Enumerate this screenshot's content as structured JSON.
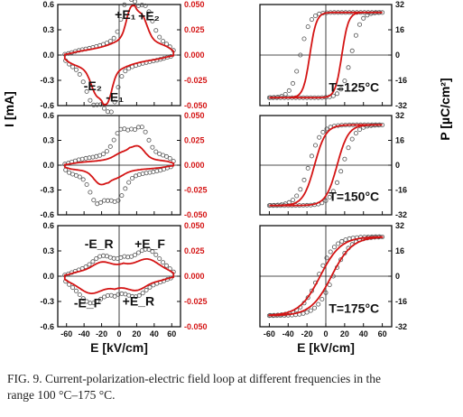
{
  "figure": {
    "caption_line1": "FIG. 9. Current-polarization-electric field loop at different frequencies in the",
    "caption_line2": "range 100 °C–175 °C.",
    "current_axis_label": "I [mA]",
    "polarization_axis_label": "P [µC/cm²]",
    "field_axis_label": "E [kV/cm]",
    "colors": {
      "measured": "#555555",
      "fitted": "#d41414",
      "right_axis": "#d41414",
      "frame": "#111111"
    }
  },
  "chart_data": [
    {
      "type": "line",
      "title": "",
      "xlabel": "",
      "ylabel": "I [mA]",
      "y2label": "",
      "xlim": [
        -70,
        70
      ],
      "ylim": [
        -0.6,
        0.6
      ],
      "y2lim": [
        -0.05,
        0.05
      ],
      "xticks": [
        -60,
        -40,
        -20,
        0,
        20,
        40,
        60
      ],
      "yticks": [
        "0.6",
        "0.3",
        "0.0",
        "-0.3",
        "-0.6"
      ],
      "y2ticks": [
        "0.050",
        "0.025",
        "0.000",
        "-0.025",
        "-0.050"
      ],
      "annotations": [
        {
          "text": "+E₁",
          "x": 7,
          "y": 0.43
        },
        {
          "text": "+E₂",
          "x": 34,
          "y": 0.41
        },
        {
          "text": "-E₂",
          "x": -30,
          "y": -0.42
        },
        {
          "text": "-E₁",
          "x": -5,
          "y": -0.55
        }
      ],
      "series": [
        {
          "kind": "measured",
          "axis": "left",
          "peak": 0.42,
          "peaks": [
            {
              "x": 9,
              "h": 0.36,
              "w": 6
            },
            {
              "x": 30,
              "h": 0.3,
              "w": 8
            }
          ],
          "plateau_x": 18,
          "tail": 0.03,
          "step": 4
        },
        {
          "kind": "fitted",
          "axis": "right",
          "peak": 0.028,
          "peaks": [
            {
              "x": 13,
              "h": 0.022,
              "w": 5
            },
            {
              "x": 26,
              "h": 0.018,
              "w": 6
            }
          ],
          "plateau_x": 18,
          "tail": 0.002
        }
      ]
    },
    {
      "type": "line",
      "title": "",
      "xlabel": "",
      "ylabel": "",
      "y2label": "",
      "xlim": [
        -70,
        70
      ],
      "ylim": [
        -0.6,
        0.6
      ],
      "y2lim": [
        -0.05,
        0.05
      ],
      "xticks": [
        -60,
        -40,
        -20,
        0,
        20,
        40,
        60
      ],
      "yticks": [
        "0.6",
        "0.3",
        "0.0",
        "-0.3",
        "-0.6"
      ],
      "y2ticks": [
        "0.050",
        "0.025",
        "0.000",
        "-0.025",
        "-0.050"
      ],
      "annotations": [],
      "series": [
        {
          "kind": "measured",
          "axis": "left",
          "peak": 0.31,
          "peaks": [
            {
              "x": 2,
              "h": 0.22,
              "w": 8
            },
            {
              "x": 26,
              "h": 0.24,
              "w": 7
            }
          ],
          "plateau_x": 14,
          "tail": 0.05,
          "step": 4
        },
        {
          "kind": "fitted",
          "axis": "right",
          "peak": 0.012,
          "peaks": [
            {
              "x": 3,
              "h": 0.004,
              "w": 8
            },
            {
              "x": 22,
              "h": 0.01,
              "w": 7
            }
          ],
          "plateau_x": 12,
          "tail": 0.002
        }
      ]
    },
    {
      "type": "line",
      "title": "",
      "xlabel": "E [kV/cm]",
      "ylabel": "",
      "y2label": "",
      "xlim": [
        -70,
        70
      ],
      "ylim": [
        -0.6,
        0.6
      ],
      "y2lim": [
        -0.05,
        0.05
      ],
      "xticks": [
        -60,
        -40,
        -20,
        0,
        20,
        40,
        60
      ],
      "yticks": [
        "0.6",
        "0.3",
        "0.0",
        "-0.3",
        "-0.6"
      ],
      "y2ticks": [
        "0.050",
        "0.025",
        "0.000",
        "-0.025",
        "-0.050"
      ],
      "annotations": [
        {
          "text": "-E_R",
          "x": -23,
          "y": 0.33
        },
        {
          "text": "+E_F",
          "x": 35,
          "y": 0.33
        },
        {
          "text": "-E_F",
          "x": -36,
          "y": -0.37
        },
        {
          "text": "+E_R",
          "x": 22,
          "y": -0.35
        }
      ],
      "series": [
        {
          "kind": "measured",
          "axis": "left",
          "peak": 0.22,
          "peaks": [
            {
              "x": -20,
              "h": 0.12,
              "w": 10
            },
            {
              "x": 33,
              "h": 0.2,
              "w": 12
            }
          ],
          "plateau_x": 5,
          "tail": 0.06,
          "step": 4
        },
        {
          "kind": "fitted",
          "axis": "right",
          "peak": 0.012,
          "peaks": [
            {
              "x": -20,
              "h": 0.007,
              "w": 10
            },
            {
              "x": 33,
              "h": 0.01,
              "w": 12
            }
          ],
          "plateau_x": 5,
          "tail": 0.004
        }
      ]
    },
    {
      "type": "line",
      "title": "",
      "xlabel": "",
      "ylabel": "",
      "y2label": "",
      "xlim": [
        -70,
        70
      ],
      "ylim": [
        -32,
        32
      ],
      "xticks": [
        -60,
        -40,
        -20,
        0,
        20,
        40,
        60
      ],
      "y2ticks": [
        "32",
        "16",
        "0",
        "-16",
        "-32"
      ],
      "annotations": [
        {
          "text": "T=125°C",
          "x": 30,
          "y": -23
        }
      ],
      "series": [
        {
          "kind": "measured",
          "Ps": 27,
          "Ec": 27,
          "w": 10,
          "step": 4
        },
        {
          "kind": "fitted",
          "Ps": 27,
          "Ec": 17,
          "w": 7
        }
      ]
    },
    {
      "type": "line",
      "title": "",
      "xlabel": "",
      "ylabel": "P [µC/cm²]",
      "y2label": "",
      "xlim": [
        -70,
        70
      ],
      "ylim": [
        -32,
        32
      ],
      "xticks": [
        -60,
        -40,
        -20,
        0,
        20,
        40,
        60
      ],
      "y2ticks": [
        "32",
        "16",
        "0",
        "-16",
        "-32"
      ],
      "annotations": [
        {
          "text": "T=150°C",
          "x": 30,
          "y": -23
        }
      ],
      "series": [
        {
          "kind": "measured",
          "Ps": 26,
          "Ec": 18,
          "w": 13,
          "step": 4
        },
        {
          "kind": "fitted",
          "Ps": 26,
          "Ec": 12,
          "w": 12
        }
      ]
    },
    {
      "type": "line",
      "title": "",
      "xlabel": "E [kV/cm]",
      "ylabel": "",
      "y2label": "",
      "xlim": [
        -70,
        70
      ],
      "ylim": [
        -32,
        32
      ],
      "xticks": [
        -60,
        -40,
        -20,
        0,
        20,
        40,
        60
      ],
      "y2ticks": [
        "32",
        "16",
        "0",
        "-16",
        "-32"
      ],
      "annotations": [
        {
          "text": "T=175°C",
          "x": 30,
          "y": -23
        }
      ],
      "series": [
        {
          "kind": "measured",
          "Ps": 25,
          "Ec": 8,
          "w": 18,
          "step": 4
        },
        {
          "kind": "fitted",
          "Ps": 25,
          "Ec": 6,
          "w": 22
        }
      ]
    }
  ]
}
